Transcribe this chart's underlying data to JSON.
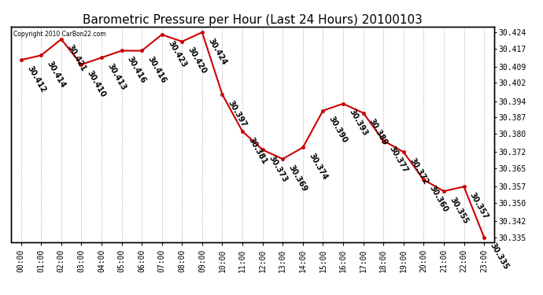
{
  "title": "Barometric Pressure per Hour (Last 24 Hours) 20100103",
  "copyright": "Copyright 2010 CarBon22.com",
  "hours": [
    "00:00",
    "01:00",
    "02:00",
    "03:00",
    "04:00",
    "05:00",
    "06:00",
    "07:00",
    "08:00",
    "09:00",
    "10:00",
    "11:00",
    "12:00",
    "13:00",
    "14:00",
    "15:00",
    "16:00",
    "17:00",
    "18:00",
    "19:00",
    "20:00",
    "21:00",
    "22:00",
    "23:00"
  ],
  "values": [
    30.412,
    30.414,
    30.421,
    30.41,
    30.413,
    30.416,
    30.416,
    30.423,
    30.42,
    30.424,
    30.397,
    30.381,
    30.373,
    30.369,
    30.374,
    30.39,
    30.393,
    30.389,
    30.377,
    30.372,
    30.36,
    30.355,
    30.357,
    30.335
  ],
  "line_color": "#cc0000",
  "bg_color": "#ffffff",
  "grid_color": "#bbbbbb",
  "title_fontsize": 11,
  "tick_fontsize": 7,
  "annot_fontsize": 7,
  "annot_rotation": -60,
  "ylim_min": 30.333,
  "ylim_max": 30.4265,
  "yticks": [
    30.335,
    30.342,
    30.35,
    30.357,
    30.365,
    30.372,
    30.38,
    30.387,
    30.394,
    30.402,
    30.409,
    30.417,
    30.424
  ]
}
